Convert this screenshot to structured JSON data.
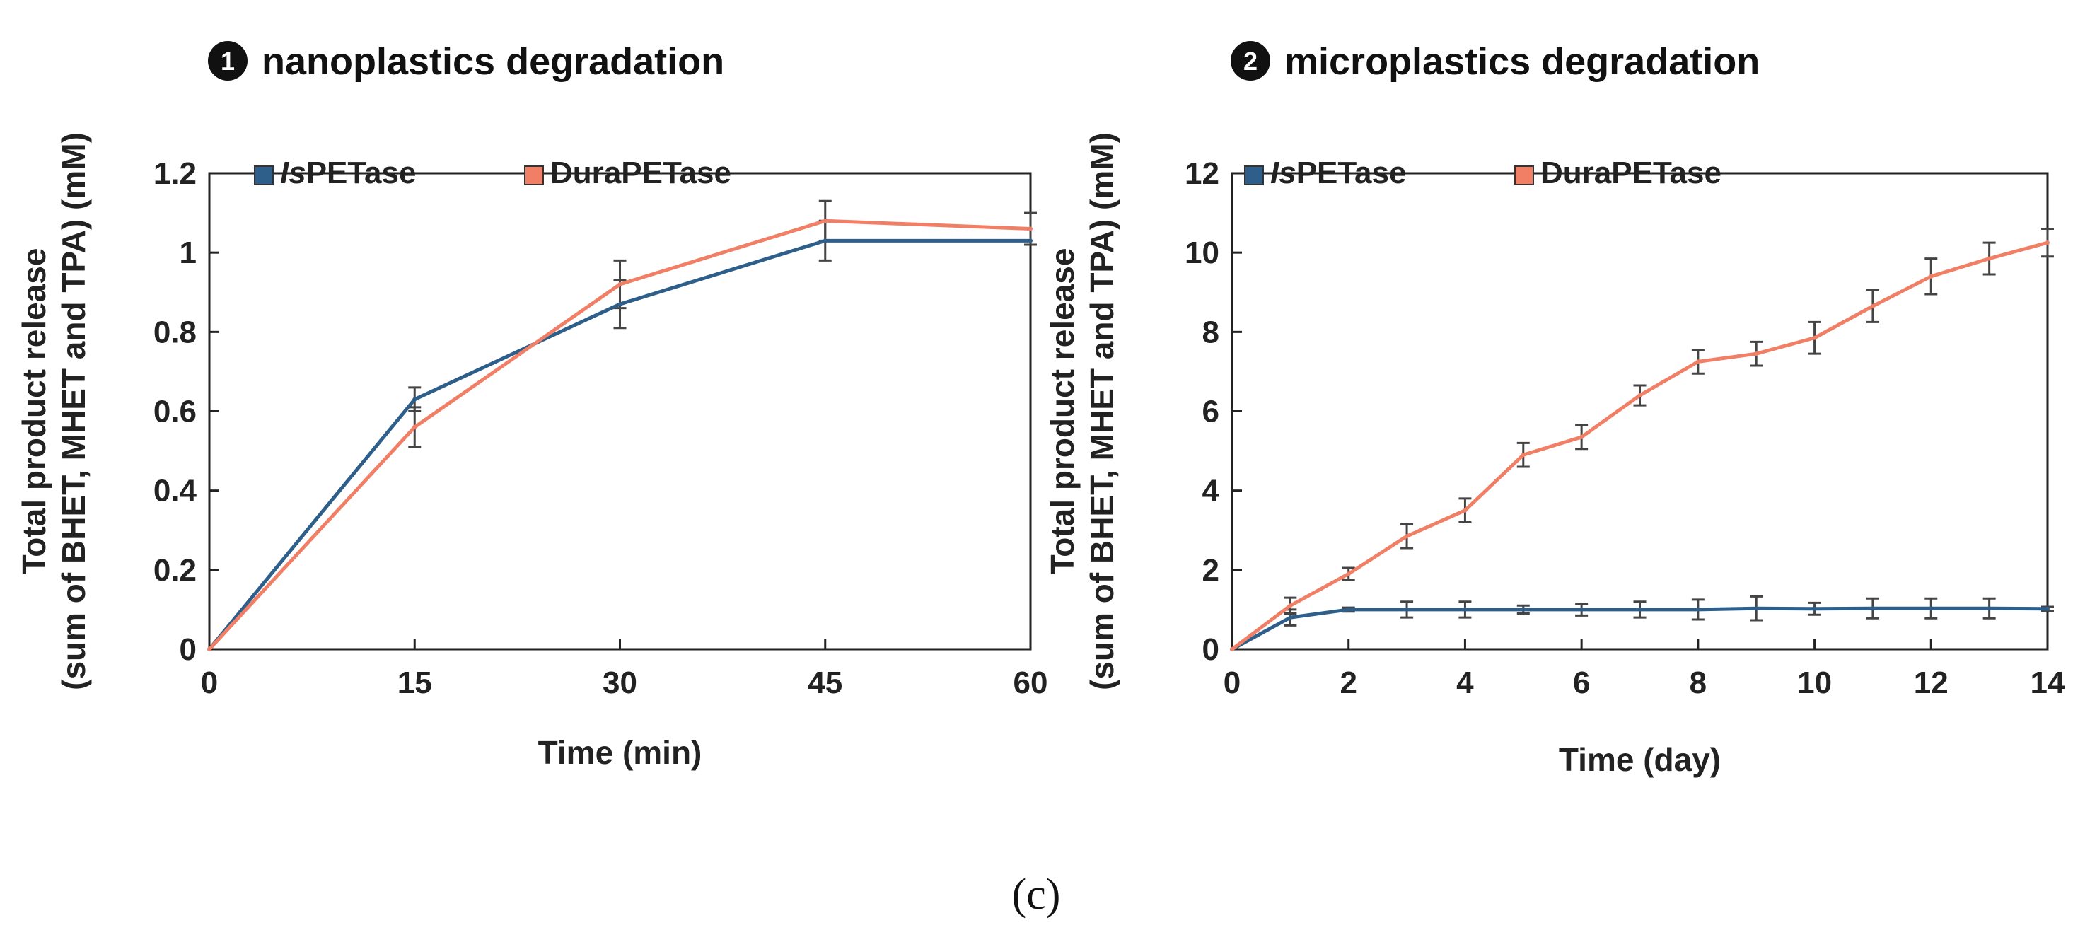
{
  "caption": "(c)",
  "colors": {
    "ls": "#2e5f8a",
    "dura": "#f07f65",
    "axis": "#222222",
    "error": "#444444"
  },
  "chart_data": [
    {
      "type": "line",
      "panel_number": "1",
      "title": "nanoplastics degradation",
      "xlabel": "Time (min)",
      "ylabel_line1": "Total product release",
      "ylabel_line2": "(sum of BHET, MHET and TPA) (mM)",
      "xlim": [
        0,
        60
      ],
      "ylim": [
        0,
        1.2
      ],
      "xticks": [
        0,
        15,
        30,
        45,
        60
      ],
      "xtick_labels": [
        "0",
        "15",
        "30",
        "45",
        "60"
      ],
      "yticks": [
        0,
        0.2,
        0.4,
        0.6,
        0.8,
        1.0,
        1.2
      ],
      "ytick_labels": [
        "0",
        "0.2",
        "0.4",
        "0.6",
        "0.8",
        "1",
        "1.2"
      ],
      "x": [
        0,
        15,
        30,
        45,
        60
      ],
      "series": [
        {
          "name": "IsPETase",
          "name_italic": "Is",
          "name_rest": "PETase",
          "color": "#2e5f8a",
          "values": [
            0,
            0.63,
            0.87,
            1.03,
            1.03
          ],
          "errors": [
            0,
            0.03,
            0.06,
            0.05,
            0.0
          ]
        },
        {
          "name": "DuraPETase",
          "name_italic": "",
          "name_rest": "DuraPETase",
          "color": "#f07f65",
          "values": [
            0,
            0.56,
            0.92,
            1.08,
            1.06
          ],
          "errors": [
            0,
            0.05,
            0.06,
            0.05,
            0.04
          ]
        }
      ]
    },
    {
      "type": "line",
      "panel_number": "2",
      "title": "microplastics degradation",
      "xlabel": "Time (day)",
      "ylabel_line1": "Total product release",
      "ylabel_line2": "(sum of BHET, MHET and TPA) (mM)",
      "xlim": [
        0,
        14
      ],
      "ylim": [
        0,
        12
      ],
      "xticks": [
        0,
        2,
        4,
        6,
        8,
        10,
        12,
        14
      ],
      "xtick_labels": [
        "0",
        "2",
        "4",
        "6",
        "8",
        "10",
        "12",
        "14"
      ],
      "yticks": [
        0,
        2,
        4,
        6,
        8,
        10,
        12
      ],
      "ytick_labels": [
        "0",
        "2",
        "4",
        "6",
        "8",
        "10",
        "12"
      ],
      "x": [
        0,
        1,
        2,
        3,
        4,
        5,
        6,
        7,
        8,
        9,
        10,
        11,
        12,
        13,
        14
      ],
      "series": [
        {
          "name": "IsPETase",
          "name_italic": "Is",
          "name_rest": "PETase",
          "color": "#2e5f8a",
          "values": [
            0,
            0.8,
            1.0,
            1.0,
            1.0,
            1.0,
            1.0,
            1.0,
            1.0,
            1.03,
            1.02,
            1.03,
            1.03,
            1.03,
            1.02
          ],
          "errors": [
            0,
            0.2,
            0.05,
            0.2,
            0.2,
            0.1,
            0.15,
            0.2,
            0.25,
            0.3,
            0.15,
            0.25,
            0.25,
            0.25,
            0.05
          ]
        },
        {
          "name": "DuraPETase",
          "name_italic": "",
          "name_rest": "DuraPETase",
          "color": "#f07f65",
          "values": [
            0,
            1.1,
            1.9,
            2.85,
            3.5,
            4.9,
            5.35,
            6.4,
            7.25,
            7.45,
            7.85,
            8.65,
            9.4,
            9.85,
            10.25
          ],
          "errors": [
            0,
            0.2,
            0.15,
            0.3,
            0.3,
            0.3,
            0.3,
            0.25,
            0.3,
            0.3,
            0.4,
            0.4,
            0.45,
            0.4,
            0.35
          ]
        }
      ]
    }
  ]
}
